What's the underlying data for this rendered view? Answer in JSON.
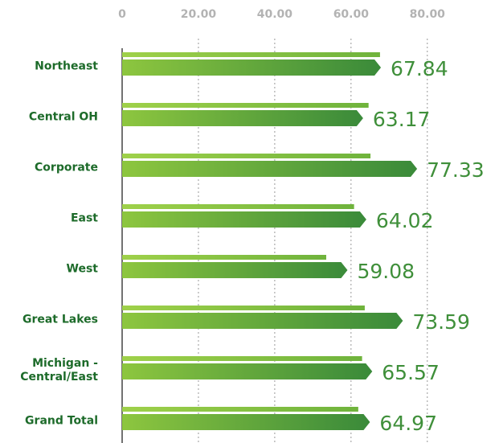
{
  "chart_data": {
    "type": "bar",
    "orientation": "horizontal",
    "categories": [
      "Northeast",
      "Central OH",
      "Corporate",
      "East",
      "West",
      "Great Lakes",
      "Michigan - Central/East",
      "Grand Total"
    ],
    "series": [
      {
        "color": "#8dc63f",
        "values": [
          67.6,
          64.6,
          65.1,
          60.8,
          53.5,
          63.6,
          62.9,
          61.9
        ]
      },
      {
        "color": "#3f8f3a",
        "values": [
          67.84,
          63.17,
          77.33,
          64.02,
          59.08,
          73.59,
          65.57,
          64.97
        ]
      }
    ],
    "xlim": [
      0,
      95
    ],
    "xticks": [
      0,
      {
        "value": 20,
        "label": "20.00"
      },
      {
        "value": 40,
        "label": "40.00"
      },
      {
        "value": 60,
        "label": "60.00"
      },
      {
        "value": 80,
        "label": "80.00"
      }
    ],
    "grid": true
  }
}
